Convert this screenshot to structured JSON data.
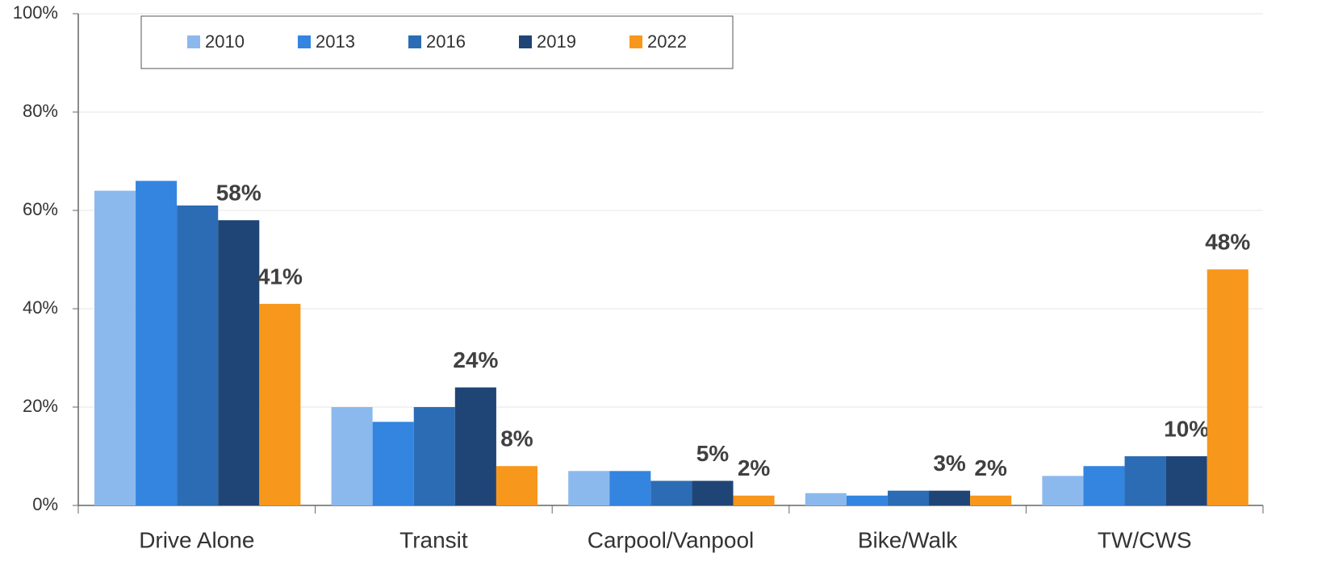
{
  "chart_data": {
    "type": "bar",
    "categories": [
      "Drive Alone",
      "Transit",
      "Carpool/Vanpool",
      "Bike/Walk",
      "TW/CWS"
    ],
    "series": [
      {
        "name": "2010",
        "color": "#8cb9ed",
        "values": [
          64,
          20,
          7,
          2.5,
          6
        ]
      },
      {
        "name": "2013",
        "color": "#3385e0",
        "values": [
          66,
          17,
          7,
          2,
          8
        ]
      },
      {
        "name": "2016",
        "color": "#2b6cb5",
        "values": [
          61,
          20,
          5,
          3,
          10
        ]
      },
      {
        "name": "2019",
        "color": "#1f4577",
        "values": [
          58,
          24,
          5,
          3,
          10
        ],
        "value_labels": [
          "58%",
          "24%",
          "5%",
          "3%",
          "10%"
        ]
      },
      {
        "name": "2022",
        "color": "#f7971c",
        "values": [
          41,
          8,
          2,
          2,
          48
        ],
        "value_labels": [
          "41%",
          "8%",
          "2%",
          "2%",
          "48%"
        ]
      }
    ],
    "ylim": [
      0,
      100
    ],
    "yticks": [
      {
        "value": 0,
        "label": "0%"
      },
      {
        "value": 20,
        "label": "20%"
      },
      {
        "value": 40,
        "label": "40%"
      },
      {
        "value": 60,
        "label": "60%"
      },
      {
        "value": 80,
        "label": "80%"
      },
      {
        "value": 100,
        "label": "100%"
      }
    ],
    "grid": true,
    "legend": "top-left"
  }
}
